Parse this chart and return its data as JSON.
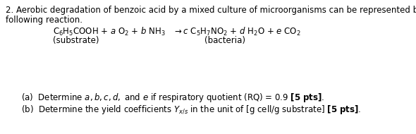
{
  "bg_color": "#ffffff",
  "text_color": "#000000",
  "line1": "2. Aerobic degradation of benzoic acid by a mixed culture of microorganisms can be represented by the",
  "line2": "following reaction.",
  "sub_substrate": "(substrate)",
  "sub_bacteria": "(bacteria)",
  "fontsize": 8.5,
  "eq_fontsize": 8.5
}
